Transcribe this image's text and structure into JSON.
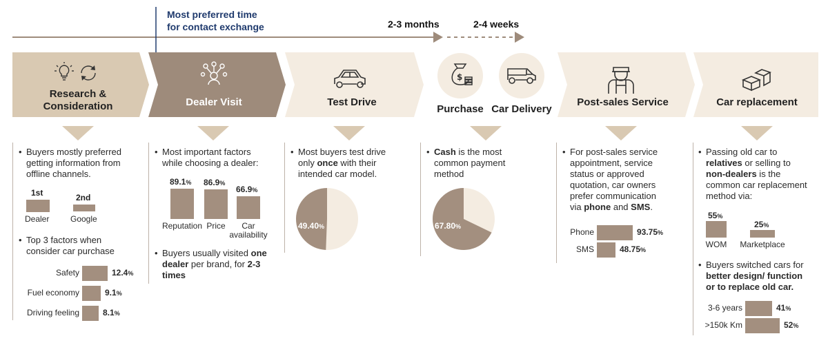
{
  "timeline": {
    "callout": [
      "Most preferred time",
      "for contact exchange"
    ],
    "duration_1": "2-3 months",
    "duration_2": "2-4 weeks"
  },
  "stages": {
    "research": {
      "title": [
        "Research &",
        "Consideration"
      ],
      "icons": [
        "lightbulb-icon",
        "refresh-icon"
      ]
    },
    "dealer": {
      "title": "Dealer Visit",
      "icon": "people-network-icon"
    },
    "test_drive": {
      "title": "Test Drive",
      "icon": "car-icon"
    },
    "purchase": {
      "title": "Purchase",
      "icon": "money-bag-icon"
    },
    "delivery": {
      "title": "Car Delivery",
      "icon": "van-icon"
    },
    "post_sales": {
      "title": "Post-sales Service",
      "icon": "mechanic-icon"
    },
    "replacement": {
      "title": "Car replacement",
      "icon": "boxes-icon"
    }
  },
  "colors": {
    "dark_stage": "#9e8b7b",
    "mid_stage": "#d9c9b2",
    "light_stage": "#f4ece1",
    "bar": "#a38f7f",
    "callout": "#1f3a6d"
  },
  "research": {
    "bullet1": [
      "Buyers mostly preferred",
      "getting information from",
      "offline channels."
    ],
    "ranks": [
      {
        "rank": "1st",
        "label": "Dealer",
        "size": 1.0
      },
      {
        "rank": "2nd",
        "label": "Google",
        "size": 0.55
      }
    ],
    "bullet2": [
      "Top 3 factors when",
      "consider car purchase"
    ],
    "factors": [
      {
        "label": "Safety",
        "value": 12.4,
        "display": "12.4"
      },
      {
        "label": "Fuel economy",
        "value": 9.1,
        "display": "9.1"
      },
      {
        "label": "Driving feeling",
        "value": 8.1,
        "display": "8.1"
      }
    ]
  },
  "dealer": {
    "bullet1": [
      "Most important factors",
      "while choosing a dealer:"
    ],
    "factors": [
      {
        "label": [
          "Reputation"
        ],
        "value": 89.1,
        "display": "89.1"
      },
      {
        "label": [
          "Price"
        ],
        "value": 86.9,
        "display": "86.9"
      },
      {
        "label": [
          "Car",
          "availability"
        ],
        "value": 66.9,
        "display": "66.9"
      }
    ],
    "bullet2": {
      "l1a": "Buyers usually visited ",
      "l1b": "one",
      "l2a": "dealer",
      "l2b": " per brand, for ",
      "l2c": "2-3",
      "l3": "times"
    }
  },
  "test_drive": {
    "bullet": {
      "l1": "Most buyers test drive",
      "l2a": "only ",
      "l2b": "once",
      "l2c": " with their",
      "l3": "intended car model."
    },
    "pie_value": 49.4,
    "pie_display": "49.40"
  },
  "purchase": {
    "bullet": {
      "l1a": "Cash",
      "l1b": " is the most",
      "l2": "common payment",
      "l3": "method"
    },
    "pie_value": 67.8,
    "pie_display": "67.80"
  },
  "post_sales": {
    "bullet": {
      "l1": "For post-sales service",
      "l2": "appointment, service",
      "l3": "status or approved",
      "l4": "quotation, car owners",
      "l5": "prefer communication",
      "l6a": "via ",
      "l6b": "phone",
      "l6c": " and ",
      "l6d": "SMS",
      "l6e": "."
    },
    "channels": [
      {
        "label": "Phone",
        "value": 93.75,
        "display": "93.75"
      },
      {
        "label": "SMS",
        "value": 48.75,
        "display": "48.75"
      }
    ]
  },
  "replacement": {
    "bullet1": {
      "l1": "Passing old car to",
      "l2a": "relatives",
      "l2b": " or selling to",
      "l3a": "non-dealers",
      "l3b": " is the",
      "l4": "common car replacement",
      "l5": "method via:"
    },
    "methods": [
      {
        "label": "WOM",
        "value": 55,
        "display": "55"
      },
      {
        "label": "Marketplace",
        "value": 25,
        "display": "25"
      }
    ],
    "bullet2": {
      "l1": "Buyers switched cars for",
      "l2": "better design/ function",
      "l3": "or to replace old car."
    },
    "reasons": [
      {
        "label": "3-6 years",
        "value": 41,
        "display": "41"
      },
      {
        "label": ">150k Km",
        "value": 52,
        "display": "52"
      }
    ]
  },
  "units": {
    "percent": "%"
  }
}
